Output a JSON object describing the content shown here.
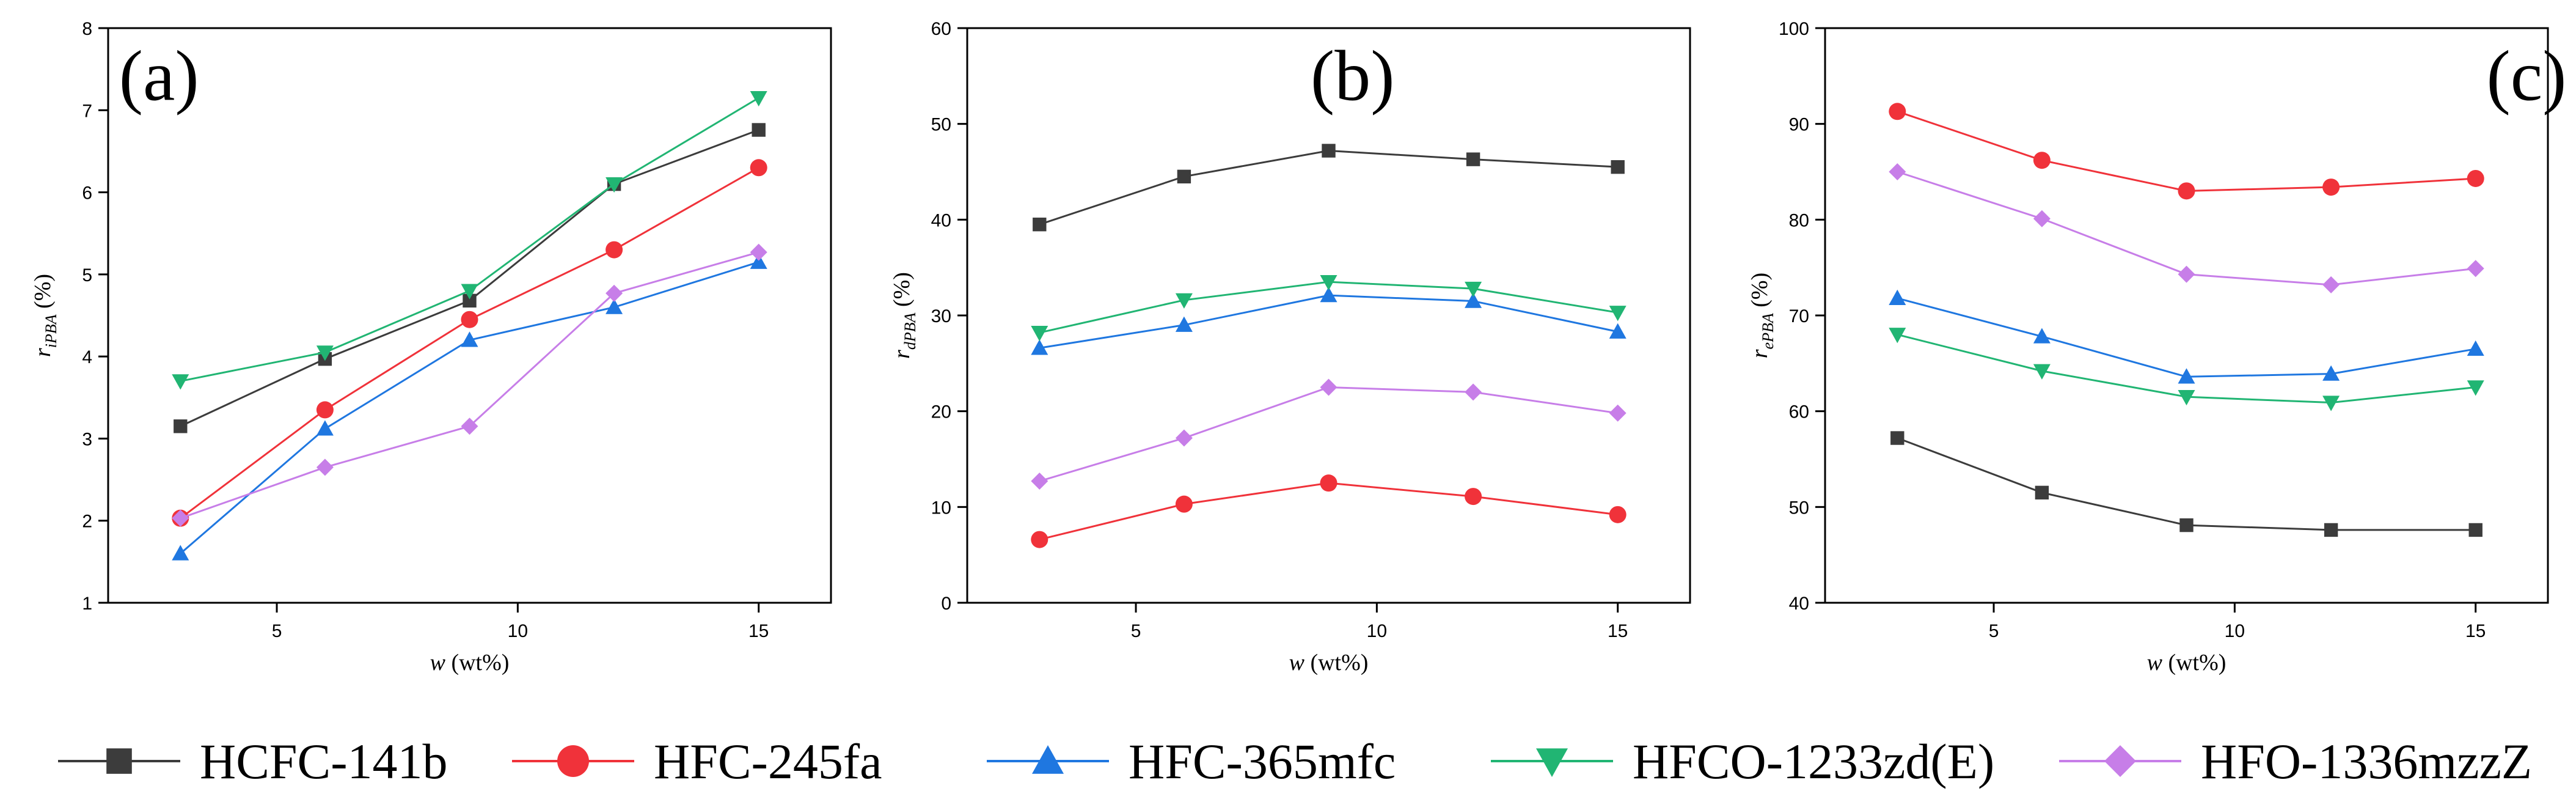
{
  "colors": {
    "HCFC-141b": "#3c3c3c",
    "HFC-245fa": "#f0323a",
    "HFC-365mfc": "#1f77e0",
    "HFCO-1233zd(E)": "#21b573",
    "HFO-1336mzzZ": "#c77ee8"
  },
  "chart_data": [
    {
      "type": "line",
      "panel_label": "(a)",
      "xlabel": {
        "var": "w",
        "unit": " (wt%)"
      },
      "ylabel": {
        "var": "r",
        "sub": "iPBA",
        "unit": " (%)"
      },
      "xlim": [
        1.5,
        16.5
      ],
      "ylim": [
        1,
        8
      ],
      "xticks": [
        5,
        10,
        15
      ],
      "yticks": [
        1,
        2,
        3,
        4,
        5,
        6,
        7,
        8
      ],
      "x": [
        3,
        6,
        9,
        12,
        15
      ],
      "series": [
        {
          "name": "HCFC-141b",
          "marker": "square",
          "values": [
            3.15,
            3.97,
            4.68,
            6.1,
            6.76
          ]
        },
        {
          "name": "HFC-245fa",
          "marker": "circle",
          "values": [
            2.03,
            3.35,
            4.45,
            5.3,
            6.3
          ]
        },
        {
          "name": "HFC-365mfc",
          "marker": "triangle-up",
          "values": [
            1.6,
            3.12,
            4.2,
            4.6,
            5.15
          ]
        },
        {
          "name": "HFCO-1233zd(E)",
          "marker": "triangle-down",
          "values": [
            3.7,
            4.05,
            4.8,
            6.1,
            7.15
          ]
        },
        {
          "name": "HFO-1336mzzZ",
          "marker": "diamond",
          "values": [
            2.03,
            2.65,
            3.15,
            4.77,
            5.27
          ]
        }
      ]
    },
    {
      "type": "line",
      "panel_label": "(b)",
      "xlabel": {
        "var": "w",
        "unit": " (wt%)"
      },
      "ylabel": {
        "var": "r",
        "sub": "dPBA",
        "unit": " (%)"
      },
      "xlim": [
        1.5,
        16.5
      ],
      "ylim": [
        0,
        60
      ],
      "xticks": [
        5,
        10,
        15
      ],
      "yticks": [
        0,
        10,
        20,
        30,
        40,
        50,
        60
      ],
      "x": [
        3,
        6,
        9,
        12,
        15
      ],
      "series": [
        {
          "name": "HCFC-141b",
          "marker": "square",
          "values": [
            39.5,
            44.5,
            47.2,
            46.3,
            45.5
          ]
        },
        {
          "name": "HFC-245fa",
          "marker": "circle",
          "values": [
            6.6,
            10.3,
            12.5,
            11.1,
            9.2
          ]
        },
        {
          "name": "HFC-365mfc",
          "marker": "triangle-up",
          "values": [
            26.6,
            29.0,
            32.1,
            31.5,
            28.3
          ]
        },
        {
          "name": "HFCO-1233zd(E)",
          "marker": "triangle-down",
          "values": [
            28.2,
            31.6,
            33.5,
            32.8,
            30.3
          ]
        },
        {
          "name": "HFO-1336mzzZ",
          "marker": "diamond",
          "values": [
            12.7,
            17.2,
            22.5,
            22.0,
            19.8
          ]
        }
      ]
    },
    {
      "type": "line",
      "panel_label": "(c)",
      "xlabel": {
        "var": "w",
        "unit": " (wt%)"
      },
      "ylabel": {
        "var": "r",
        "sub": "ePBA",
        "unit": " (%)"
      },
      "xlim": [
        1.5,
        16.5
      ],
      "ylim": [
        40,
        100
      ],
      "xticks": [
        5,
        10,
        15
      ],
      "yticks": [
        40,
        50,
        60,
        70,
        80,
        90,
        100
      ],
      "x": [
        3,
        6,
        9,
        12,
        15
      ],
      "series": [
        {
          "name": "HCFC-141b",
          "marker": "square",
          "values": [
            57.2,
            51.5,
            48.1,
            47.6,
            47.6
          ]
        },
        {
          "name": "HFC-245fa",
          "marker": "circle",
          "values": [
            91.3,
            86.2,
            83.0,
            83.4,
            84.3
          ]
        },
        {
          "name": "HFC-365mfc",
          "marker": "triangle-up",
          "values": [
            71.8,
            67.8,
            63.6,
            63.9,
            66.5
          ]
        },
        {
          "name": "HFCO-1233zd(E)",
          "marker": "triangle-down",
          "values": [
            68.0,
            64.2,
            61.5,
            60.9,
            62.5
          ]
        },
        {
          "name": "HFO-1336mzzZ",
          "marker": "diamond",
          "values": [
            85.0,
            80.1,
            74.3,
            73.2,
            74.9
          ]
        }
      ]
    }
  ],
  "legend": {
    "placement": "bottom",
    "entries": [
      {
        "name": "HCFC-141b",
        "marker": "square"
      },
      {
        "name": "HFC-245fa",
        "marker": "circle"
      },
      {
        "name": "HFC-365mfc",
        "marker": "triangle-up"
      },
      {
        "name": "HFCO-1233zd(E)",
        "marker": "triangle-down"
      },
      {
        "name": "HFO-1336mzzZ",
        "marker": "diamond"
      }
    ]
  }
}
